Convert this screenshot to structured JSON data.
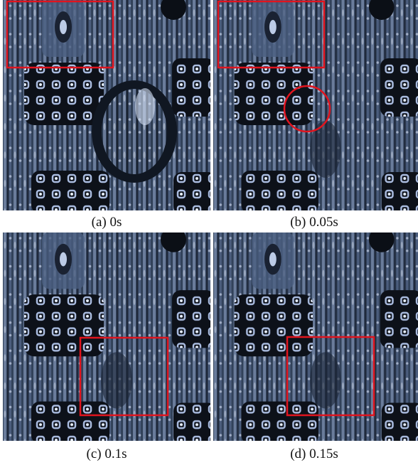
{
  "figure": {
    "panels": [
      {
        "caption": "(a) 0s"
      },
      {
        "caption": "(b) 0.05s"
      },
      {
        "caption": "(c) 0.1s"
      },
      {
        "caption": "(d) 0.15s"
      }
    ]
  }
}
